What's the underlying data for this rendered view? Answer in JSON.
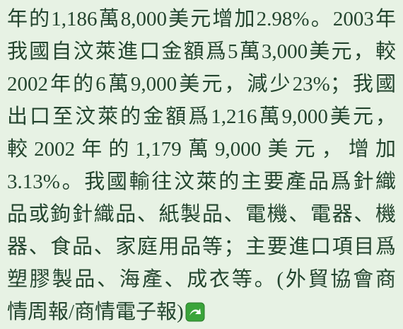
{
  "paragraph": {
    "lines": [
      "年的1,186萬8,000美元增加2.98%。2003年",
      "我國自汶萊進口金額爲5萬3,000美元，較",
      "2002年的6萬9,000美元，減少23%；我國",
      "出口至汶萊的金額爲1,216萬9,000美元，",
      "較2002年的1,179萬9,000美元，增加",
      "3.13%。我國輸往汶萊的主要產品爲針織",
      "品或鉤針織品、紙製品、電機、電器、機",
      "器、食品、家庭用品等；主要進口項目爲",
      "塑膠製品、海產、成衣等。(外貿協會商",
      "情周報/商情電子報)"
    ]
  }
}
